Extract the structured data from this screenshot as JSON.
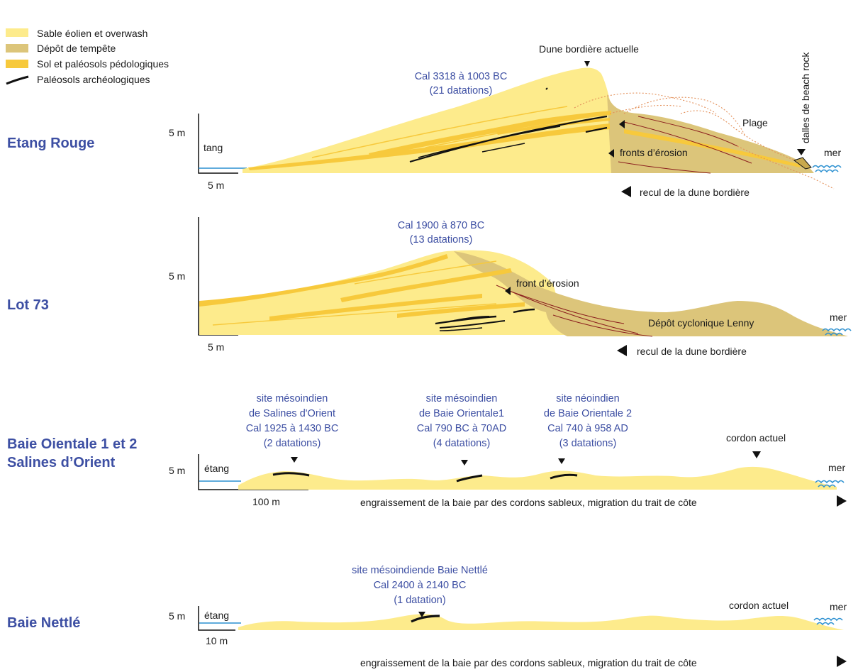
{
  "colors": {
    "aeolian_sand": "#fdeb8c",
    "storm_deposit": "#dcc57a",
    "soil": "#f7c93c",
    "paleosol": "#111111",
    "water": "#2a8fd0",
    "annotation_blue": "#3d4fa3"
  },
  "legend": [
    {
      "label": "Sable éolien et overwash",
      "swatch": "aeolian_sand"
    },
    {
      "label": "Dépôt de tempête",
      "swatch": "storm_deposit"
    },
    {
      "label": "Sol et paléosols pédologiques",
      "swatch": "soil"
    },
    {
      "label": "Paléosols archéologiques",
      "swatch": "paleosol-stroke"
    }
  ],
  "profiles": {
    "etang_rouge": {
      "title": "Etang Rouge",
      "vscale": "5 m",
      "hscale": "5 m",
      "etang": "tang",
      "date_line1": "Cal 3318 à 1003 BC",
      "date_line2": "(21 datations)",
      "dune": "Dune bordière actuelle",
      "plage": "Plage",
      "beachrock": "dalles de beach rock",
      "fronts": "fronts d’érosion",
      "mer": "mer",
      "recul": "recul de la dune bordière"
    },
    "lot73": {
      "title": "Lot 73",
      "vscale": "5 m",
      "hscale": "5 m",
      "date_line1": "Cal 1900 à 870 BC",
      "date_line2": "(13 datations)",
      "front": "front d’érosion",
      "depot": "Dépôt cyclonique Lenny",
      "mer": "mer",
      "recul": "recul de la dune bordière"
    },
    "baie_orientale": {
      "title_line1": "Baie Oientale 1 et 2",
      "title_line2": "Salines d’Orient",
      "vscale": "5 m",
      "hscale": "100 m",
      "etang": "étang",
      "sites": [
        {
          "l1": "site mésoindien",
          "l2": "de Salines d'Orient",
          "l3": "Cal 1925 à 1430 BC",
          "l4": "(2 datations)"
        },
        {
          "l1": "site mésoindien",
          "l2": "de Baie Orientale1",
          "l3": "Cal 790 BC à 70AD",
          "l4": "(4 datations)"
        },
        {
          "l1": "site néoindien",
          "l2": "de Baie Orientale 2",
          "l3": "Cal 740 à 958 AD",
          "l4": "(3 datations)"
        }
      ],
      "cordon": "cordon actuel",
      "mer": "mer",
      "engraissement": "engraissement de la baie par des cordons sableux, migration du trait de côte"
    },
    "baie_nettle": {
      "title": "Baie Nettlé",
      "vscale": "5 m",
      "hscale": "10 m",
      "etang": "étang",
      "site_l1": "site mésoindiende Baie Nettlé",
      "site_l2": "Cal 2400 à 2140 BC",
      "site_l3": "(1 datation)",
      "cordon": "cordon actuel",
      "mer": "mer",
      "engraissement": "engraissement de la baie par des cordons sableux, migration du trait de côte"
    }
  }
}
